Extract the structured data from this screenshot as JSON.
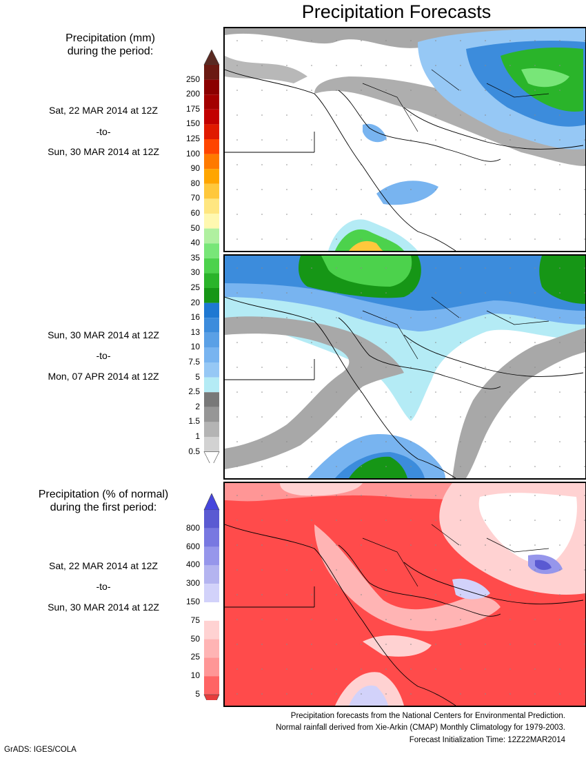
{
  "title": "Precipitation Forecasts",
  "amount_section": {
    "heading_line1": "Precipitation (mm)",
    "heading_line2": "during the period:",
    "period1": {
      "start": "Sat, 22 MAR 2014 at 12Z",
      "sep": "-to-",
      "end": "Sun, 30 MAR 2014 at 12Z"
    },
    "period2": {
      "start": "Sun, 30 MAR 2014 at 12Z",
      "sep": "-to-",
      "end": "Mon, 07 APR 2014 at 12Z"
    }
  },
  "percent_section": {
    "heading_line1": "Precipitation (% of normal)",
    "heading_line2": "during the first period:",
    "period": {
      "start": "Sat, 22 MAR 2014 at 12Z",
      "sep": "-to-",
      "end": "Sun, 30 MAR 2014 at 12Z"
    }
  },
  "amount_colorbar": {
    "labels": [
      "250",
      "200",
      "175",
      "150",
      "125",
      "100",
      "90",
      "80",
      "70",
      "60",
      "50",
      "40",
      "35",
      "30",
      "25",
      "20",
      "16",
      "13",
      "10",
      "7.5",
      "5",
      "2.5",
      "2",
      "1.5",
      "1",
      "0.5"
    ],
    "top_arrow_color": "#5a2a22",
    "colors": [
      "#6b1a12",
      "#8b0000",
      "#a30000",
      "#c20000",
      "#e01a00",
      "#ff4500",
      "#ff7a00",
      "#ffa500",
      "#ffc83c",
      "#ffe680",
      "#fff8b0",
      "#b0f0a0",
      "#78e678",
      "#4cd24c",
      "#2ab42a",
      "#169616",
      "#1e78d2",
      "#3c8cdc",
      "#5aa0e6",
      "#78b4f0",
      "#96c8f5",
      "#b4ebf5",
      "#787878",
      "#969696",
      "#b4b4b4",
      "#d2d2d2"
    ],
    "bottom_arrow_color": "#ffffff"
  },
  "percent_colorbar": {
    "labels": [
      "800",
      "600",
      "400",
      "300",
      "150",
      "75",
      "50",
      "25",
      "10",
      "5"
    ],
    "top_arrow_color": "#4646dc",
    "colors": [
      "#5a5ad2",
      "#7878e1",
      "#9696eb",
      "#b4b4f0",
      "#d2d2fa",
      "#ffffff",
      "#ffd2d2",
      "#ffb4b4",
      "#ff9696",
      "#ff6464"
    ],
    "bottom_arrow_color": "#e63c3c"
  },
  "footer": {
    "line1": "Precipitation forecasts from the National Centers for Environmental Prediction.",
    "line2": "Normal rainfall derived from Xie-Arkin (CMAP) Monthly Climatology for 1979-2003.",
    "line3": "Forecast Initialization Time: 12Z22MAR2014"
  },
  "credit": "GrADS: IGES/COLA"
}
